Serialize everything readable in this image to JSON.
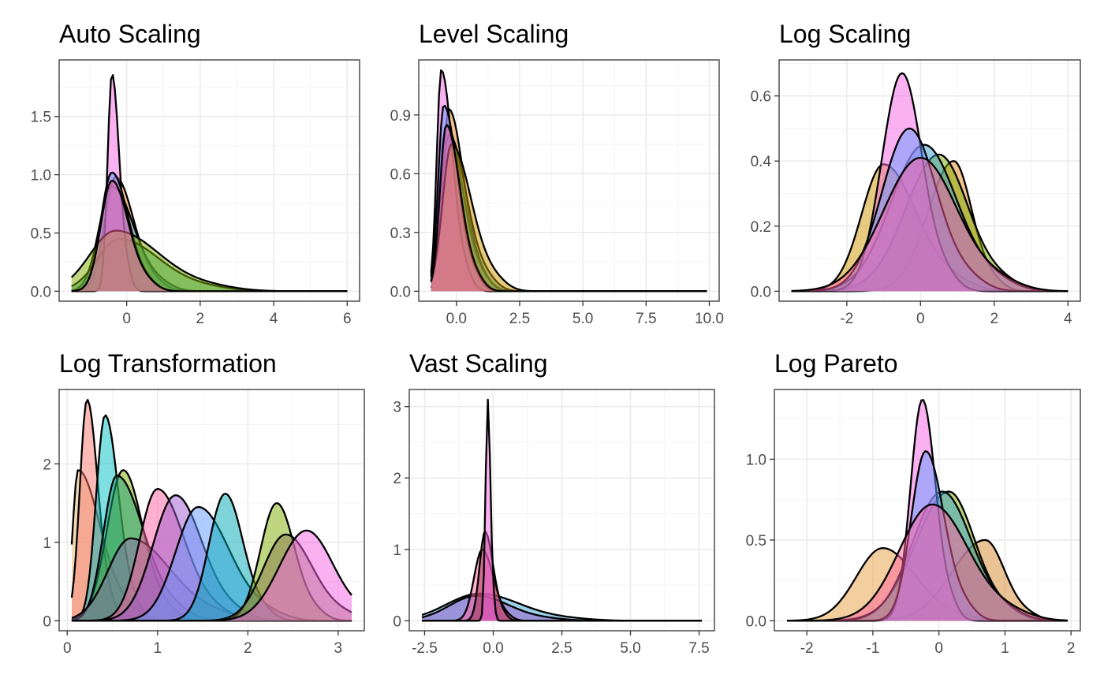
{
  "chart_data": [
    {
      "type": "area",
      "title": "Auto Scaling",
      "xlabel": "",
      "ylabel": "",
      "xlim": [
        -1.5,
        6.0
      ],
      "ylim": [
        0,
        1.9
      ],
      "x_ticks": [
        0,
        2,
        4,
        6
      ],
      "x_tick_labels": [
        "0",
        "2",
        "4",
        "6"
      ],
      "y_ticks": [
        0,
        0.5,
        1.0,
        1.5
      ],
      "y_tick_labels": [
        "0.0",
        "0.5",
        "1.0",
        "1.5"
      ],
      "grid": true,
      "series": [
        {
          "color": "#E7861B",
          "peak_x": -0.3,
          "peak_y": 0.98,
          "spread_left": 0.3,
          "spread_right": 0.5
        },
        {
          "color": "#3AA0D0",
          "peak_x": -0.4,
          "peak_y": 0.9,
          "spread_left": 0.35,
          "spread_right": 0.6
        },
        {
          "color": "#1B9E77",
          "peak_x": -0.2,
          "peak_y": 0.45,
          "spread_left": 0.6,
          "spread_right": 1.1
        },
        {
          "color": "#F564E3",
          "peak_x": -0.4,
          "peak_y": 1.87,
          "spread_left": 0.12,
          "spread_right": 0.2
        },
        {
          "color": "#619CFF",
          "peak_x": -0.4,
          "peak_y": 1.02,
          "spread_left": 0.3,
          "spread_right": 0.45
        },
        {
          "color": "#7CAE00",
          "peak_x": -0.3,
          "peak_y": 0.52,
          "spread_left": 0.7,
          "spread_right": 1.2
        },
        {
          "color": "#FF5FA0",
          "peak_x": -0.4,
          "peak_y": 0.95,
          "spread_left": 0.3,
          "spread_right": 0.45
        }
      ]
    },
    {
      "type": "area",
      "title": "Level Scaling",
      "xlabel": "",
      "ylabel": "",
      "xlim": [
        -1.0,
        9.9
      ],
      "ylim": [
        0,
        1.13
      ],
      "x_ticks": [
        0,
        2.5,
        5,
        7.5,
        10
      ],
      "x_tick_labels": [
        "0.0",
        "2.5",
        "5.0",
        "7.5",
        "10.0"
      ],
      "y_ticks": [
        0,
        0.3,
        0.6,
        0.9
      ],
      "y_tick_labels": [
        "0.0",
        "0.3",
        "0.6",
        "0.9"
      ],
      "grid": true,
      "series": [
        {
          "color": "#E7861B",
          "peak_x": -0.3,
          "peak_y": 0.93,
          "spread_left": 0.25,
          "spread_right": 0.6
        },
        {
          "color": "#3AA0D0",
          "peak_x": -0.4,
          "peak_y": 0.85,
          "spread_left": 0.28,
          "spread_right": 0.65
        },
        {
          "color": "#1B9E77",
          "peak_x": -0.3,
          "peak_y": 0.8,
          "spread_left": 0.3,
          "spread_right": 0.7
        },
        {
          "color": "#F564E3",
          "peak_x": -0.6,
          "peak_y": 1.13,
          "spread_left": 0.18,
          "spread_right": 0.45
        },
        {
          "color": "#619CFF",
          "peak_x": -0.5,
          "peak_y": 0.95,
          "spread_left": 0.22,
          "spread_right": 0.55
        },
        {
          "color": "#CD9600",
          "peak_x": -0.2,
          "peak_y": 0.75,
          "spread_left": 0.35,
          "spread_right": 0.8
        },
        {
          "color": "#FF5FA0",
          "peak_x": -0.4,
          "peak_y": 0.85,
          "spread_left": 0.25,
          "spread_right": 0.55
        }
      ]
    },
    {
      "type": "area",
      "title": "Log Scaling",
      "xlabel": "",
      "ylabel": "",
      "xlim": [
        -3.5,
        4.0
      ],
      "ylim": [
        0,
        0.68
      ],
      "x_ticks": [
        -2,
        0,
        2,
        4
      ],
      "x_tick_labels": [
        "-2",
        "0",
        "2",
        "4"
      ],
      "y_ticks": [
        0,
        0.2,
        0.4,
        0.6
      ],
      "y_tick_labels": [
        "0.0",
        "0.2",
        "0.4",
        "0.6"
      ],
      "grid": true,
      "series": [
        {
          "color": "#E7861B",
          "peak_x": 0.9,
          "peak_y": 0.4,
          "spread_left": 0.7,
          "spread_right": 0.5
        },
        {
          "color": "#CD9600",
          "peak_x": -1.0,
          "peak_y": 0.39,
          "spread_left": 0.6,
          "spread_right": 0.9
        },
        {
          "color": "#7CAE00",
          "peak_x": 0.5,
          "peak_y": 0.42,
          "spread_left": 0.9,
          "spread_right": 0.8
        },
        {
          "color": "#3AA0D0",
          "peak_x": 0.1,
          "peak_y": 0.45,
          "spread_left": 0.9,
          "spread_right": 0.9
        },
        {
          "color": "#F564E3",
          "peak_x": -0.5,
          "peak_y": 0.67,
          "spread_left": 0.55,
          "spread_right": 0.55
        },
        {
          "color": "#619CFF",
          "peak_x": -0.3,
          "peak_y": 0.5,
          "spread_left": 0.75,
          "spread_right": 0.75
        },
        {
          "color": "#FF5FA0",
          "peak_x": 0.0,
          "peak_y": 0.41,
          "spread_left": 1.0,
          "spread_right": 1.0
        }
      ]
    },
    {
      "type": "area",
      "title": "Log Transformation",
      "xlabel": "",
      "ylabel": "",
      "xlim": [
        0.05,
        3.15
      ],
      "ylim": [
        0,
        2.82
      ],
      "x_ticks": [
        0,
        1,
        2,
        3
      ],
      "x_tick_labels": [
        "0",
        "1",
        "2",
        "3"
      ],
      "y_ticks": [
        0,
        1,
        2
      ],
      "y_tick_labels": [
        "0",
        "1",
        "2"
      ],
      "grid": true,
      "series": [
        {
          "color": "#E8B56E",
          "peak_x": 0.12,
          "peak_y": 1.92,
          "spread_left": 0.06,
          "spread_right": 0.25
        },
        {
          "color": "#F8766D",
          "peak_x": 0.22,
          "peak_y": 2.82,
          "spread_left": 0.08,
          "spread_right": 0.12
        },
        {
          "color": "#00BFC4",
          "peak_x": 0.42,
          "peak_y": 2.62,
          "spread_left": 0.1,
          "spread_right": 0.15
        },
        {
          "color": "#7CAE00",
          "peak_x": 0.62,
          "peak_y": 1.92,
          "spread_left": 0.18,
          "spread_right": 0.22
        },
        {
          "color": "#1B9E77",
          "peak_x": 0.55,
          "peak_y": 1.85,
          "spread_left": 0.15,
          "spread_right": 0.3
        },
        {
          "color": "#8A6EA8",
          "peak_x": 0.7,
          "peak_y": 1.05,
          "spread_left": 0.25,
          "spread_right": 0.45
        },
        {
          "color": "#FF5FA0",
          "peak_x": 1.0,
          "peak_y": 1.68,
          "spread_left": 0.2,
          "spread_right": 0.3
        },
        {
          "color": "#9B59D0",
          "peak_x": 1.2,
          "peak_y": 1.6,
          "spread_left": 0.25,
          "spread_right": 0.3
        },
        {
          "color": "#619CFF",
          "peak_x": 1.45,
          "peak_y": 1.45,
          "spread_left": 0.25,
          "spread_right": 0.35
        },
        {
          "color": "#00A9B5",
          "peak_x": 1.75,
          "peak_y": 1.62,
          "spread_left": 0.18,
          "spread_right": 0.2
        },
        {
          "color": "#7CAE00",
          "peak_x": 2.32,
          "peak_y": 1.5,
          "spread_left": 0.18,
          "spread_right": 0.2
        },
        {
          "color": "#8C7A4E",
          "peak_x": 2.42,
          "peak_y": 1.1,
          "spread_left": 0.25,
          "spread_right": 0.3
        },
        {
          "color": "#F564E3",
          "peak_x": 2.65,
          "peak_y": 1.15,
          "spread_left": 0.3,
          "spread_right": 0.3
        }
      ]
    },
    {
      "type": "area",
      "title": "Vast Scaling",
      "xlabel": "",
      "ylabel": "",
      "xlim": [
        -2.6,
        7.6
      ],
      "ylim": [
        0,
        3.1
      ],
      "x_ticks": [
        -2.5,
        0,
        2.5,
        5,
        7.5
      ],
      "x_tick_labels": [
        "-2.5",
        "0.0",
        "2.5",
        "5.0",
        "7.5"
      ],
      "y_ticks": [
        0,
        1,
        2,
        3
      ],
      "y_tick_labels": [
        "0",
        "1",
        "2",
        "3"
      ],
      "grid": true,
      "series": [
        {
          "color": "#3AA0D0",
          "peak_x": -0.5,
          "peak_y": 0.38,
          "spread_left": 1.2,
          "spread_right": 1.5
        },
        {
          "color": "#9B59D0",
          "peak_x": -0.6,
          "peak_y": 0.35,
          "spread_left": 1.0,
          "spread_right": 1.2
        },
        {
          "color": "#FF5FA0",
          "peak_x": -0.4,
          "peak_y": 1.0,
          "spread_left": 0.3,
          "spread_right": 0.4
        },
        {
          "color": "#A03050",
          "peak_x": -0.3,
          "peak_y": 1.25,
          "spread_left": 0.2,
          "spread_right": 0.3
        },
        {
          "color": "#F564E3",
          "peak_x": -0.2,
          "peak_y": 3.1,
          "spread_left": 0.08,
          "spread_right": 0.1
        }
      ]
    },
    {
      "type": "area",
      "title": "Log Pareto",
      "xlabel": "",
      "ylabel": "",
      "xlim": [
        -2.3,
        1.95
      ],
      "ylim": [
        0,
        1.37
      ],
      "x_ticks": [
        -2,
        -1,
        0,
        1,
        2
      ],
      "x_tick_labels": [
        "-2",
        "-1",
        "0",
        "1",
        "2"
      ],
      "y_ticks": [
        0,
        0.5,
        1.0
      ],
      "y_tick_labels": [
        "0.0",
        "0.5",
        "1.0"
      ],
      "grid": true,
      "series": [
        {
          "color": "#E8A040",
          "peak_x": -0.85,
          "peak_y": 0.45,
          "spread_left": 0.4,
          "spread_right": 0.5
        },
        {
          "color": "#D4882A",
          "peak_x": 0.7,
          "peak_y": 0.5,
          "spread_left": 0.5,
          "spread_right": 0.3
        },
        {
          "color": "#7CAE00",
          "peak_x": 0.15,
          "peak_y": 0.8,
          "spread_left": 0.5,
          "spread_right": 0.4
        },
        {
          "color": "#3AA0D0",
          "peak_x": 0.05,
          "peak_y": 0.8,
          "spread_left": 0.45,
          "spread_right": 0.45
        },
        {
          "color": "#F564E3",
          "peak_x": -0.25,
          "peak_y": 1.37,
          "spread_left": 0.18,
          "spread_right": 0.2
        },
        {
          "color": "#619CFF",
          "peak_x": -0.2,
          "peak_y": 1.05,
          "spread_left": 0.22,
          "spread_right": 0.28
        },
        {
          "color": "#FF5FA0",
          "peak_x": -0.1,
          "peak_y": 0.72,
          "spread_left": 0.5,
          "spread_right": 0.55
        }
      ]
    }
  ]
}
